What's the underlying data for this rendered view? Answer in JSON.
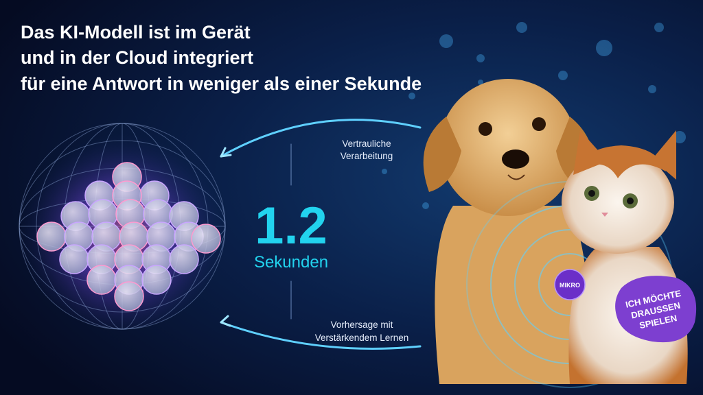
{
  "header": {
    "title_lines": [
      "Das KI-Modell ist im Gerät",
      "und in der Cloud integriert",
      "für eine Antwort in weniger als einer Sekunde"
    ]
  },
  "top_label": {
    "lines": [
      "Vertrauliche",
      "Verarbeitung"
    ]
  },
  "metric": {
    "value": "1.2",
    "unit": "Sekunden"
  },
  "bottom_label": {
    "lines": [
      "Vorhersage mit",
      "Verstärkendem Lernen"
    ]
  },
  "mic_badge": "MIKRO",
  "speech_bubble": {
    "lines": [
      "ICH MÖCHTE",
      "DRAUSSEN",
      "SPIELEN"
    ]
  }
}
